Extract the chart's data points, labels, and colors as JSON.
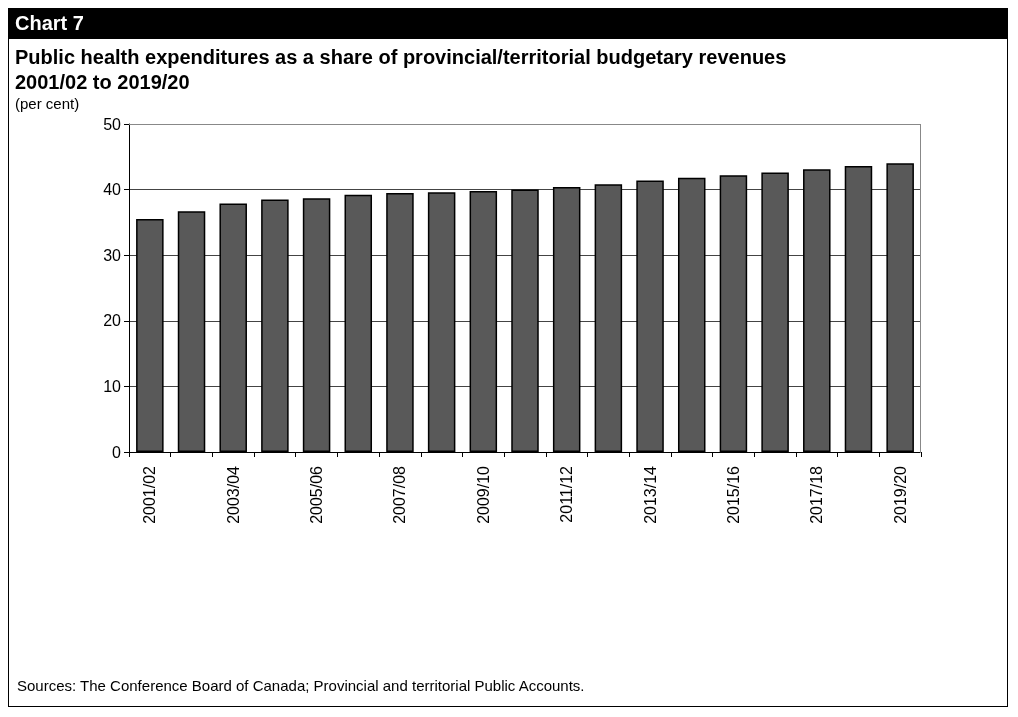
{
  "chart_data": {
    "type": "bar",
    "title": "Chart 7",
    "subtitle": "Public health expenditures as a share of provincial/territorial budgetary revenues\n2001/02 to 2019/20",
    "ylabel": "(per cent)",
    "categories": [
      "2001/02",
      null,
      "2003/04",
      null,
      "2005/06",
      null,
      "2007/08",
      null,
      "2009/10",
      null,
      "2011/12",
      null,
      "2013/14",
      null,
      "2015/16",
      null,
      "2017/18",
      null,
      "2019/20"
    ],
    "values": [
      35.5,
      36.7,
      37.9,
      38.5,
      38.7,
      39.2,
      39.5,
      39.6,
      39.8,
      40.0,
      40.4,
      40.8,
      41.4,
      41.8,
      42.2,
      42.6,
      43.1,
      43.6,
      44.0
    ],
    "color": "#595959",
    "ylim": [
      0,
      50
    ],
    "yticks": [
      0,
      10,
      20,
      30,
      40,
      50
    ],
    "grid": "y",
    "annotations": [
      "Sources: The Conference Board of Canada; Provincial and territorial Public Accounts."
    ]
  }
}
